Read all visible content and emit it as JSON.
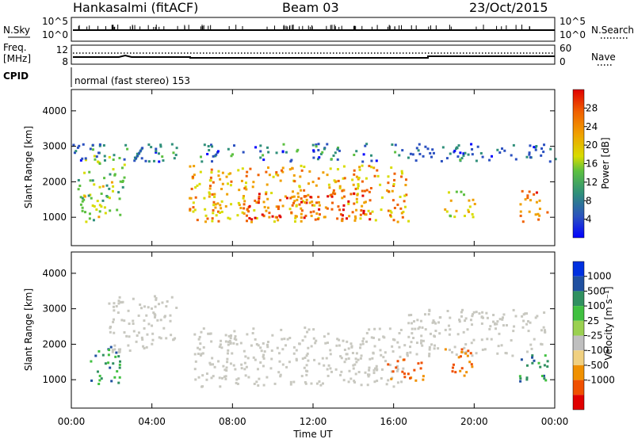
{
  "header": {
    "title": "Hankasalmi (fitACF)",
    "beam": "Beam 03",
    "date": "23/Oct/2015"
  },
  "sky_panel": {
    "left_label": "N.Sky",
    "right_label": "N.Search",
    "left_ticks": [
      "10^5",
      "10^0"
    ],
    "right_ticks": [
      "10^5",
      "10^0"
    ]
  },
  "freq_panel": {
    "left_label_1": "Freq.",
    "left_label_2": "[MHz]",
    "right_label": "Nave",
    "left_ticks": [
      "12",
      "8"
    ],
    "right_ticks": [
      "60",
      "0"
    ]
  },
  "cpid_panel": {
    "label": "CPID",
    "text": "normal (fast stereo) 153"
  },
  "colors": {
    "scatter_gray": "#c8c8c0",
    "power_scale": [
      "#0000ff",
      "#2a50c0",
      "#2f8f7a",
      "#5cc040",
      "#d8dc00",
      "#f0a000",
      "#f06000",
      "#e00000"
    ],
    "velocity_scale": [
      "#e00000",
      "#f05000",
      "#f09000",
      "#f0d080",
      "#bfbfbf",
      "#9ad050",
      "#40c040",
      "#309060",
      "#2050a0",
      "#0030e0"
    ]
  },
  "chart_data": [
    {
      "type": "heatmap",
      "name": "power",
      "ylabel": "Slant Range [km]",
      "yticks": [
        1000,
        2000,
        3000,
        4000
      ],
      "ylim": [
        200,
        4600
      ],
      "xlim_hours": [
        0,
        24
      ],
      "colorbar": {
        "label": "Power [dB]",
        "ticks": [
          4,
          8,
          12,
          16,
          20,
          24,
          28
        ],
        "range": [
          0,
          32
        ]
      },
      "regions": [
        {
          "t0": 0.3,
          "t1": 2.6,
          "r0": 900,
          "r1": 2800,
          "level": 16
        },
        {
          "t0": 5.8,
          "t1": 16.7,
          "r0": 900,
          "r1": 2500,
          "level": 22
        },
        {
          "t0": 8.5,
          "t1": 14.8,
          "r0": 950,
          "r1": 1800,
          "level": 26
        },
        {
          "t0": 18.5,
          "t1": 20.0,
          "r0": 1000,
          "r1": 1800,
          "level": 18
        },
        {
          "t0": 22.2,
          "t1": 23.6,
          "r0": 900,
          "r1": 1800,
          "level": 24
        },
        {
          "t0": 0.0,
          "t1": 24.0,
          "r0": 2600,
          "r1": 3100,
          "level": 8
        }
      ]
    },
    {
      "type": "heatmap",
      "name": "velocity",
      "ylabel": "Slant Range [km]",
      "yticks": [
        1000,
        2000,
        3000,
        4000
      ],
      "ylim": [
        200,
        4600
      ],
      "xlim_hours": [
        0,
        24
      ],
      "xticks": [
        "00:00",
        "04:00",
        "08:00",
        "12:00",
        "16:00",
        "20:00",
        "00:00"
      ],
      "xlabel": "Time UT",
      "colorbar": {
        "label": "Velocity [m s⁻¹]",
        "ticks": [
          "1000",
          "500",
          "100",
          "25",
          "-25",
          "-100",
          "-500",
          "-1000"
        ]
      },
      "regions": [
        {
          "t0": 1.8,
          "t1": 5.2,
          "r0": 1800,
          "r1": 3400,
          "category": "ground"
        },
        {
          "t0": 6.0,
          "t1": 16.5,
          "r0": 800,
          "r1": 2500,
          "category": "ground"
        },
        {
          "t0": 16.5,
          "t1": 23.5,
          "r0": 1700,
          "r1": 3000,
          "category": "ground"
        },
        {
          "t0": 0.8,
          "t1": 2.4,
          "r0": 900,
          "r1": 2000,
          "category": "toward"
        },
        {
          "t0": 15.5,
          "t1": 17.5,
          "r0": 1000,
          "r1": 1600,
          "category": "away"
        },
        {
          "t0": 18.5,
          "t1": 20.0,
          "r0": 1100,
          "r1": 1900,
          "category": "away"
        },
        {
          "t0": 22.2,
          "t1": 23.6,
          "r0": 900,
          "r1": 1800,
          "category": "toward"
        }
      ]
    }
  ]
}
